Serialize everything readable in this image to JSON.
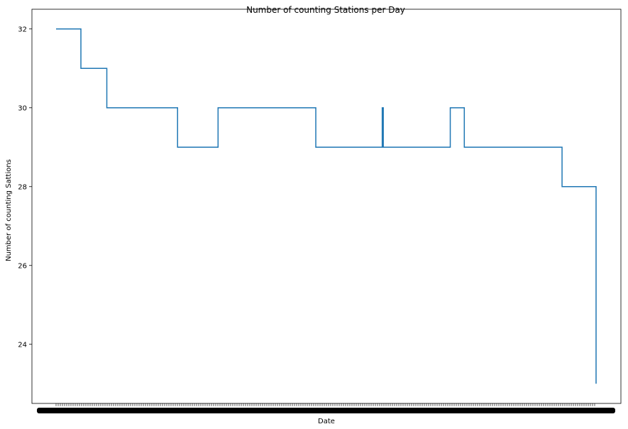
{
  "chart_data": {
    "type": "line",
    "title": "Number of counting Stations per Day",
    "xlabel": "Date",
    "ylabel": "Number of counting Sattions",
    "ylim": [
      22.5,
      32.5
    ],
    "yticks": [
      24,
      26,
      28,
      30,
      32
    ],
    "x_tick_labels_note": "dense overlapping date tick labels (illegible)",
    "grid": false,
    "series": [
      {
        "color": "#1f77b4",
        "steps": [
          {
            "x": 0.0,
            "y": 32
          },
          {
            "x": 0.046,
            "y": 31
          },
          {
            "x": 0.094,
            "y": 30
          },
          {
            "x": 0.225,
            "y": 29
          },
          {
            "x": 0.3,
            "y": 30
          },
          {
            "x": 0.481,
            "y": 29
          },
          {
            "x": 0.604,
            "y": 30
          },
          {
            "x": 0.606,
            "y": 29
          },
          {
            "x": 0.73,
            "y": 30
          },
          {
            "x": 0.756,
            "y": 29
          },
          {
            "x": 0.937,
            "y": 28
          },
          {
            "x": 1.0,
            "y": 23
          }
        ]
      }
    ]
  }
}
